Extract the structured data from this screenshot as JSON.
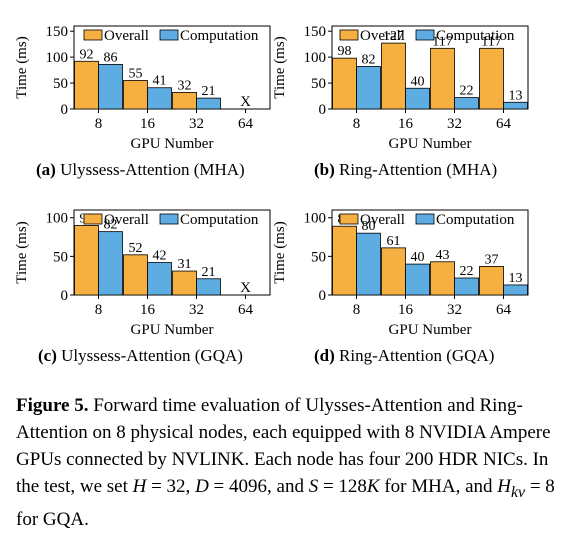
{
  "colors": {
    "overall": "#F5B041",
    "computation": "#5DADE2",
    "stroke": "#000000"
  },
  "chart_data": [
    {
      "type": "bar",
      "panel_label": "(a)",
      "caption": "Ulyssess-Attention (MHA)",
      "xlabel": "GPU Number",
      "ylabel": "Time (ms)",
      "categories": [
        "8",
        "16",
        "32",
        "64"
      ],
      "ylim": [
        0,
        160
      ],
      "yticks": [
        0,
        50,
        100,
        150
      ],
      "legend": "top",
      "series": [
        {
          "name": "Overall",
          "values": [
            92,
            55,
            32,
            null
          ]
        },
        {
          "name": "Computation",
          "values": [
            86,
            41,
            21,
            null
          ]
        }
      ],
      "annotations": [
        {
          "category": "64",
          "text": "X"
        }
      ]
    },
    {
      "type": "bar",
      "panel_label": "(b)",
      "caption": "Ring-Attention (MHA)",
      "xlabel": "GPU Number",
      "ylabel": "Time (ms)",
      "categories": [
        "8",
        "16",
        "32",
        "64"
      ],
      "ylim": [
        0,
        160
      ],
      "yticks": [
        0,
        50,
        100,
        150
      ],
      "legend": "top",
      "series": [
        {
          "name": "Overall",
          "values": [
            98,
            127,
            117,
            117
          ]
        },
        {
          "name": "Computation",
          "values": [
            82,
            40,
            22,
            13
          ]
        }
      ],
      "annotations": []
    },
    {
      "type": "bar",
      "panel_label": "(c)",
      "caption": "Ulyssess-Attention (GQA)",
      "xlabel": "GPU Number",
      "ylabel": "Time (ms)",
      "categories": [
        "8",
        "16",
        "32",
        "64"
      ],
      "ylim": [
        0,
        110
      ],
      "yticks": [
        0,
        50,
        100
      ],
      "legend": "top",
      "series": [
        {
          "name": "Overall",
          "values": [
            90,
            52,
            31,
            null
          ]
        },
        {
          "name": "Computation",
          "values": [
            82,
            42,
            21,
            null
          ]
        }
      ],
      "annotations": [
        {
          "category": "64",
          "text": "X"
        }
      ]
    },
    {
      "type": "bar",
      "panel_label": "(d)",
      "caption": "Ring-Attention (GQA)",
      "xlabel": "GPU Number",
      "ylabel": "Time (ms)",
      "categories": [
        "8",
        "16",
        "32",
        "64"
      ],
      "ylim": [
        0,
        110
      ],
      "yticks": [
        0,
        50,
        100
      ],
      "legend": "top",
      "series": [
        {
          "name": "Overall",
          "values": [
            89,
            61,
            43,
            37
          ]
        },
        {
          "name": "Computation",
          "values": [
            80,
            40,
            22,
            13
          ]
        }
      ],
      "annotations": []
    }
  ],
  "figure_caption": {
    "label": "Figure 5.",
    "text_1": "Forward time evaluation of Ulysses-Attention and Ring-Attention on 8 physical nodes, each equipped with 8 NVIDIA Ampere GPUs connected by NVLINK. Each node has four 200 HDR NICs. In the test, we set ",
    "var_h": "H",
    "eq_h": " = 32, ",
    "var_d": "D",
    "eq_d": " = 4096, and ",
    "var_s": "S",
    "eq_s": " = 128",
    "var_k": "K",
    "text_2": " for MHA, and ",
    "var_hkv": "H",
    "sub_kv": "kv",
    "eq_hkv": " = 8 for GQA."
  }
}
